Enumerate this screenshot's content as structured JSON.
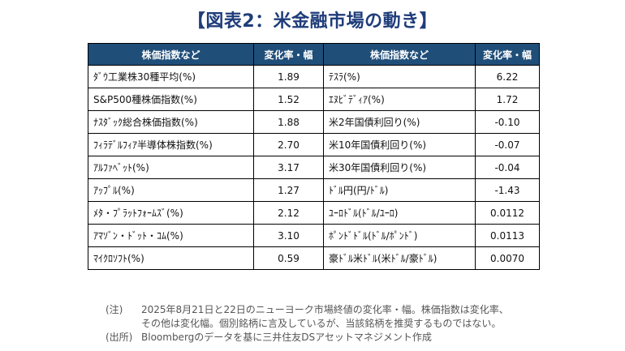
{
  "title": "【図表2：米金融市場の動き】",
  "headers": [
    "株価指数など",
    "変化率・幅",
    "株価指数など",
    "変化率・幅"
  ],
  "rows": [
    {
      "left_name": "ﾀﾞｳ工業株30種平均(%)",
      "left_value": "1.89",
      "right_name": "ﾃｽﾗ(%)",
      "right_value": "6.22"
    },
    {
      "left_name": "S&P500種株価指数(%)",
      "left_value": "1.52",
      "right_name": "ｴﾇﾋﾞﾃﾞｨｱ(%)",
      "right_value": "1.72"
    },
    {
      "left_name": "ﾅｽﾀﾞｯｸ総合株価指数(%)",
      "left_value": "1.88",
      "right_name": "米2年国債利回り(%)",
      "right_value": "-0.10"
    },
    {
      "left_name": "ﾌｨﾗﾃﾞﾙﾌｨｱ半導体株指数(%)",
      "left_value": "2.70",
      "right_name": "米10年国債利回り(%)",
      "right_value": "-0.07"
    },
    {
      "left_name": "ｱﾙﾌｧﾍﾞｯﾄ(%)",
      "left_value": "3.17",
      "right_name": "米30年国債利回り(%)",
      "right_value": "-0.04"
    },
    {
      "left_name": "ｱｯﾌﾟﾙ(%)",
      "left_value": "1.27",
      "right_name": "ﾄﾞﾙ円(円/ﾄﾞﾙ)",
      "right_value": "-1.43"
    },
    {
      "left_name": "ﾒﾀ・ﾌﾟﾗｯﾄﾌｫｰﾑｽﾞ(%)",
      "left_value": "2.12",
      "right_name": "ﾕｰﾛﾄﾞﾙ(ﾄﾞﾙ/ﾕｰﾛ)",
      "right_value": "0.0112"
    },
    {
      "left_name": "ｱﾏｿﾞﾝ・ﾄﾞｯﾄ・ｺﾑ(%)",
      "left_value": "3.10",
      "right_name": "ﾎﾟﾝﾄﾞﾄﾞﾙ(ﾄﾞﾙ/ﾎﾟﾝﾄﾞ)",
      "right_value": "0.0113"
    },
    {
      "left_name": "ﾏｲｸﾛｿﾌﾄ(%)",
      "left_value": "0.59",
      "right_name": "豪ﾄﾞﾙ米ﾄﾞﾙ(米ﾄﾞﾙ/豪ﾄﾞﾙ)",
      "right_value": "0.0070"
    }
  ],
  "notes": {
    "note_tag": "(注)",
    "note_line1": "2025年8月21日と22日のニューヨーク市場終値の変化率・幅。株価指数は変化率、",
    "note_line2": "その他は変化幅。個別銘柄に言及しているが、当該銘柄を推奨するものではない。",
    "source_tag": "(出所)",
    "source_line": "Bloombergのデータを基に三井住友DSアセットマネジメント作成"
  }
}
